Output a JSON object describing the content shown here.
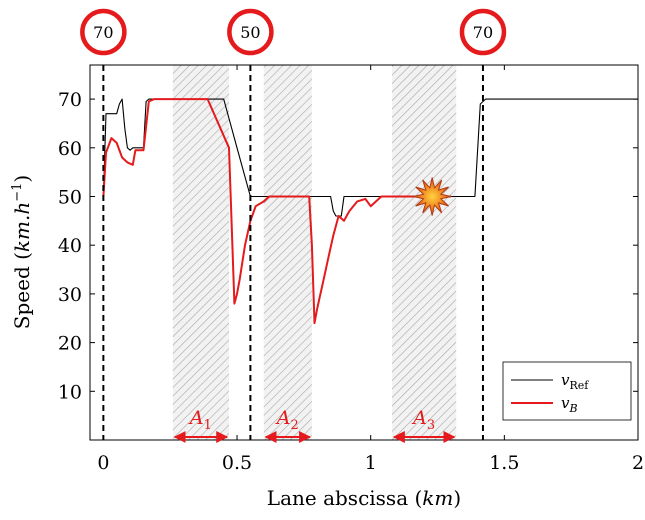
{
  "chart_data": {
    "type": "line",
    "xlabel": "Lane abscissa (km)",
    "xlabel_parts": [
      "Lane abscissa (",
      "km",
      ")"
    ],
    "ylabel": "Speed (km.h^-1)",
    "ylabel_parts": [
      "Speed (",
      "km.h",
      "−1",
      ")"
    ],
    "xlim": [
      -0.05,
      2.0
    ],
    "ylim": [
      0,
      77
    ],
    "xticks": [
      0,
      0.5,
      1,
      1.5,
      2
    ],
    "xtick_labels": [
      "0",
      "0.5",
      "1",
      "1.5",
      "2"
    ],
    "yticks": [
      10,
      20,
      30,
      40,
      50,
      60,
      70
    ],
    "ytick_labels": [
      "10",
      "20",
      "30",
      "40",
      "50",
      "60",
      "70"
    ],
    "grid": false,
    "legend_position": "bottom-right",
    "speed_limit_signs": [
      {
        "x": 0.0,
        "label": "70"
      },
      {
        "x": 0.55,
        "label": "50"
      },
      {
        "x": 1.42,
        "label": "70"
      }
    ],
    "zones": [
      {
        "name": "A",
        "sub": "1",
        "x0": 0.26,
        "x1": 0.47
      },
      {
        "name": "A",
        "sub": "2",
        "x0": 0.6,
        "x1": 0.78
      },
      {
        "name": "A",
        "sub": "3",
        "x0": 1.08,
        "x1": 1.32
      }
    ],
    "crash_marker": {
      "x": 1.23,
      "y": 50
    },
    "series": [
      {
        "name": "v_Ref",
        "legend_main": "v",
        "legend_sub": "Ref",
        "color": "#000000",
        "x": [
          0.0,
          0.01,
          0.015,
          0.05,
          0.06,
          0.07,
          0.08,
          0.09,
          0.1,
          0.11,
          0.13,
          0.15,
          0.16,
          0.17,
          0.18,
          0.19,
          0.2,
          0.45,
          0.5,
          0.55,
          0.6,
          0.85,
          0.86,
          0.87,
          0.88,
          0.89,
          0.9,
          1.0,
          1.39,
          1.41,
          1.43,
          2.0
        ],
        "y": [
          50,
          67,
          67,
          67,
          69,
          70,
          64,
          60,
          59.5,
          60,
          60,
          60,
          69.5,
          70,
          70,
          70,
          70,
          70,
          60,
          50,
          50,
          50,
          47,
          46,
          46,
          46,
          50,
          50,
          50,
          69,
          70,
          70
        ]
      },
      {
        "name": "v_B",
        "legend_main": "v",
        "legend_sub": "B",
        "color": "#e41a1c",
        "x": [
          0.0,
          0.01,
          0.03,
          0.05,
          0.07,
          0.09,
          0.11,
          0.12,
          0.14,
          0.15,
          0.17,
          0.19,
          0.23,
          0.39,
          0.47,
          0.48,
          0.49,
          0.5,
          0.51,
          0.53,
          0.55,
          0.57,
          0.6,
          0.62,
          0.77,
          0.78,
          0.79,
          0.8,
          0.82,
          0.84,
          0.86,
          0.88,
          0.9,
          0.92,
          0.95,
          0.98,
          1.0,
          1.02,
          1.04,
          1.06,
          1.1,
          1.3
        ],
        "y": [
          50,
          59,
          62,
          61,
          58,
          57,
          56.5,
          59.5,
          59.5,
          59.5,
          69.5,
          70,
          70,
          70,
          60,
          44,
          28,
          30,
          33,
          40,
          45,
          48,
          49,
          50,
          50,
          40,
          24,
          27,
          32,
          37,
          42,
          46,
          45,
          47,
          49,
          49.5,
          48,
          49,
          50,
          50,
          50,
          50
        ]
      }
    ]
  }
}
